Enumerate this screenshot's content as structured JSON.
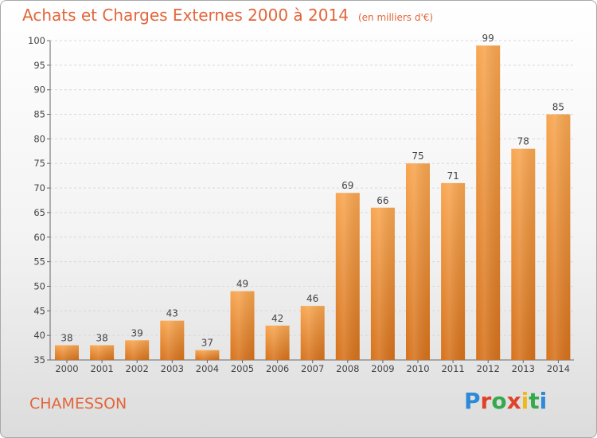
{
  "title": "Achats et Charges Externes 2000 à 2014",
  "unit": "(en milliers d'€)",
  "city": "CHAMESSON",
  "logo": "Proxiti",
  "colors": {
    "title": "#e2663a",
    "bar_top": "#f7a24e",
    "bar_bottom": "#d9741e",
    "grid": "#d8d8d8"
  },
  "chart_data": {
    "type": "bar",
    "categories": [
      "2000",
      "2001",
      "2002",
      "2003",
      "2004",
      "2005",
      "2006",
      "2007",
      "2008",
      "2009",
      "2010",
      "2011",
      "2012",
      "2013",
      "2014"
    ],
    "values": [
      38,
      38,
      39,
      43,
      37,
      49,
      42,
      46,
      69,
      66,
      75,
      71,
      99,
      78,
      85
    ],
    "ylim": [
      35,
      100
    ],
    "yticks": [
      35,
      40,
      45,
      50,
      55,
      60,
      65,
      70,
      75,
      80,
      85,
      90,
      95,
      100
    ],
    "grid": "horizontal dashed",
    "xlabel": "",
    "ylabel": ""
  }
}
